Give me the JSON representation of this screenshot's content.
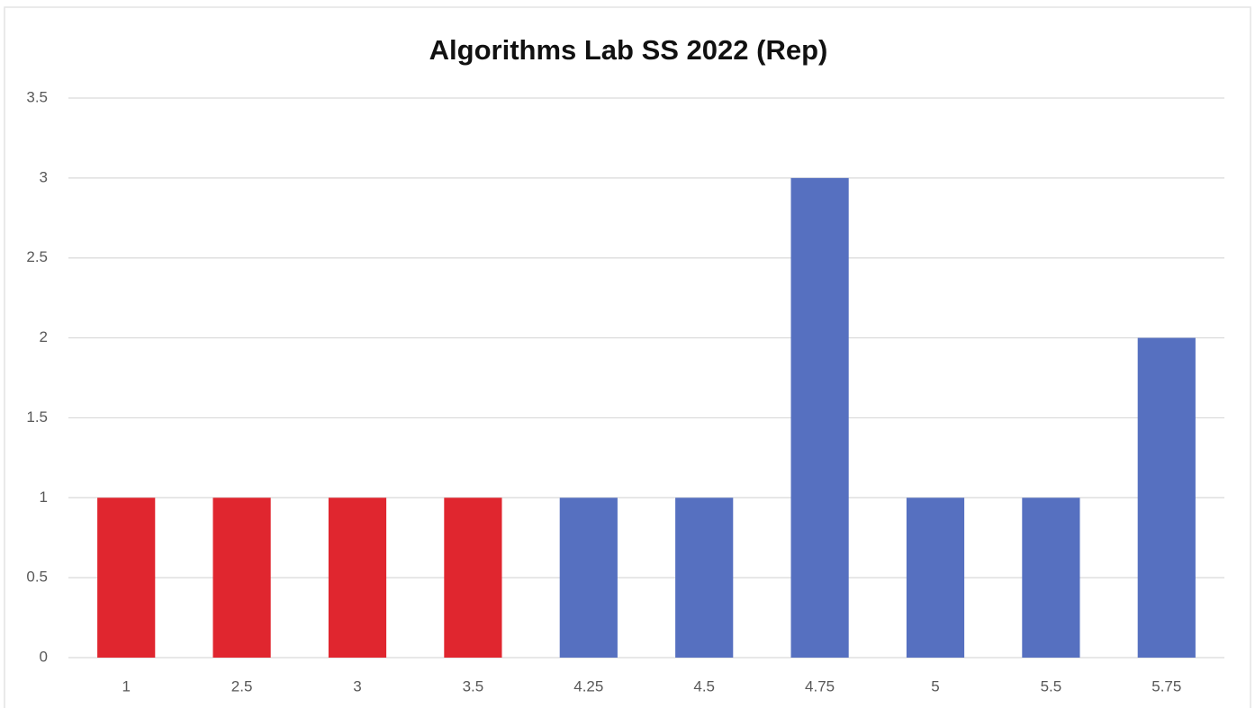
{
  "chart_data": {
    "type": "bar",
    "title": "Algorithms Lab SS 2022 (Rep)",
    "categories": [
      "1",
      "2.5",
      "3",
      "3.5",
      "4.25",
      "4.5",
      "4.75",
      "5",
      "5.5",
      "5.75"
    ],
    "values": [
      1,
      1,
      1,
      1,
      1,
      1,
      3,
      1,
      1,
      2
    ],
    "colors": [
      "#e0262f",
      "#e0262f",
      "#e0262f",
      "#e0262f",
      "#5670c0",
      "#5670c0",
      "#5670c0",
      "#5670c0",
      "#5670c0",
      "#5670c0"
    ],
    "ylim": [
      0,
      3.5
    ],
    "yticks": [
      0,
      0.5,
      1,
      1.5,
      2,
      2.5,
      3,
      3.5
    ],
    "grid": true
  }
}
